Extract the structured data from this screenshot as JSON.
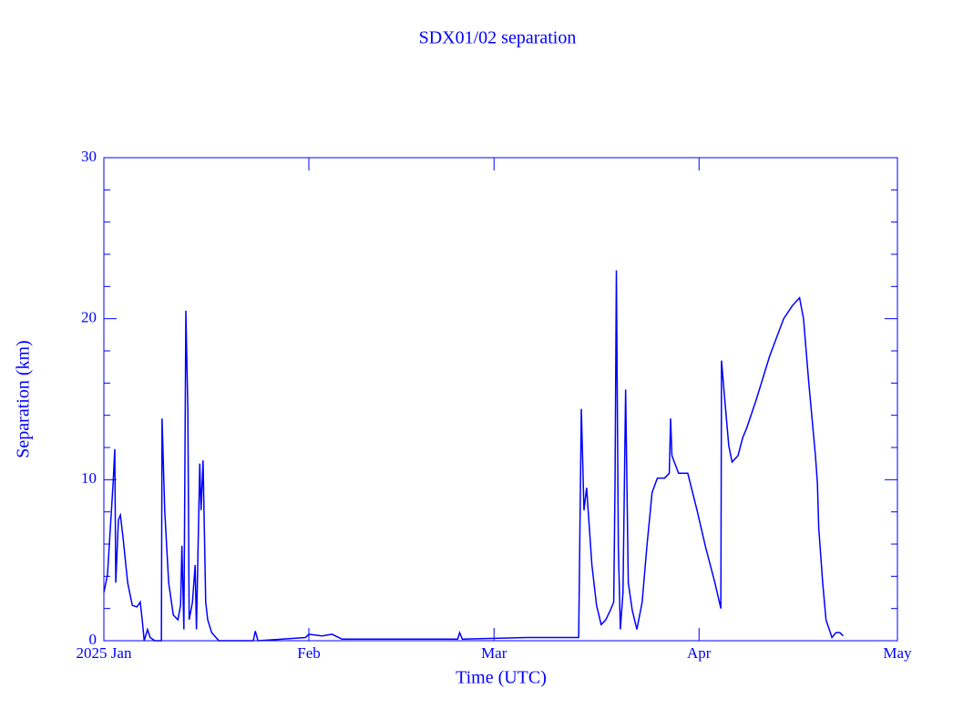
{
  "chart_data": {
    "type": "line",
    "title": "SDX01/02 separation",
    "xlabel": "Time (UTC)",
    "ylabel": "Separation (km)",
    "color": "#0000ff",
    "xlim": [
      0,
      120
    ],
    "xticks": [
      {
        "value": 0,
        "label": "2025 Jan"
      },
      {
        "value": 31,
        "label": "Feb"
      },
      {
        "value": 59,
        "label": "Mar"
      },
      {
        "value": 90,
        "label": "Apr"
      },
      {
        "value": 120,
        "label": "May"
      }
    ],
    "ylim": [
      0,
      30
    ],
    "yticks": [
      0,
      10,
      20,
      30
    ],
    "yminorticks": [
      2,
      4,
      6,
      8,
      12,
      14,
      16,
      18,
      22,
      24,
      26,
      28
    ],
    "x": [
      0,
      0.55,
      1.4,
      1.65,
      1.8,
      2.2,
      2.5,
      2.9,
      3.6,
      4.3,
      5.0,
      5.5,
      5.8,
      6.1,
      6.6,
      7.0,
      7.7,
      8.7,
      8.8,
      9.2,
      9.8,
      10.5,
      11.2,
      11.6,
      11.8,
      12.1,
      12.4,
      12.7,
      12.9,
      13.4,
      13.8,
      14.0,
      14.5,
      14.7,
      15.0,
      15.4,
      15.7,
      16.3,
      17.4,
      22.6,
      22.9,
      23.3,
      27.0,
      30.5,
      31.0,
      33.0,
      34.5,
      36.0,
      50.0,
      53.5,
      53.8,
      54.2,
      64.0,
      71.8,
      72.2,
      72.6,
      73.0,
      73.8,
      74.5,
      75.2,
      75.9,
      76.6,
      77.1,
      77.3,
      77.5,
      77.8,
      78.1,
      78.5,
      78.9,
      79.3,
      79.9,
      80.6,
      81.4,
      82.1,
      82.9,
      83.7,
      84.8,
      85.5,
      85.7,
      85.9,
      86.9,
      88.3,
      89.7,
      91.0,
      92.4,
      93.3,
      93.4,
      93.8,
      94.5,
      95.0,
      95.9,
      96.6,
      97.2,
      98.6,
      100.7,
      102.8,
      104.1,
      105.2,
      105.8,
      106.6,
      107.6,
      107.9,
      108.1,
      108.7,
      109.2,
      110.1,
      110.7,
      111.3,
      111.8
    ],
    "values": [
      3.0,
      4.1,
      9.8,
      11.9,
      3.6,
      7.5,
      7.8,
      6.4,
      3.6,
      2.2,
      2.1,
      2.4,
      1.3,
      0,
      0.7,
      0.2,
      0,
      0,
      13.8,
      8.1,
      3.6,
      1.6,
      1.3,
      2.2,
      5.9,
      0.7,
      20.5,
      14.3,
      1.3,
      2.4,
      4.7,
      0.7,
      11.0,
      8.1,
      11.2,
      2.4,
      1.3,
      0.5,
      0,
      0,
      0.6,
      0,
      0.1,
      0.2,
      0.4,
      0.3,
      0.4,
      0.1,
      0.1,
      0.1,
      0.5,
      0.1,
      0.2,
      0.2,
      14.4,
      8.1,
      9.5,
      4.7,
      2.2,
      1.0,
      1.3,
      1.9,
      2.4,
      9.9,
      23.0,
      5.8,
      0.7,
      3.0,
      15.6,
      3.6,
      1.9,
      0.7,
      2.4,
      5.8,
      9.2,
      10.1,
      10.1,
      10.4,
      13.8,
      11.5,
      10.4,
      10.4,
      8.1,
      5.8,
      3.6,
      2.0,
      17.4,
      15.4,
      12.1,
      11.1,
      11.5,
      12.6,
      13.2,
      14.9,
      17.7,
      20.0,
      20.8,
      21.3,
      20.0,
      16.0,
      11.5,
      9.8,
      7.0,
      3.6,
      1.3,
      0.2,
      0.5,
      0.5,
      0.3
    ]
  }
}
